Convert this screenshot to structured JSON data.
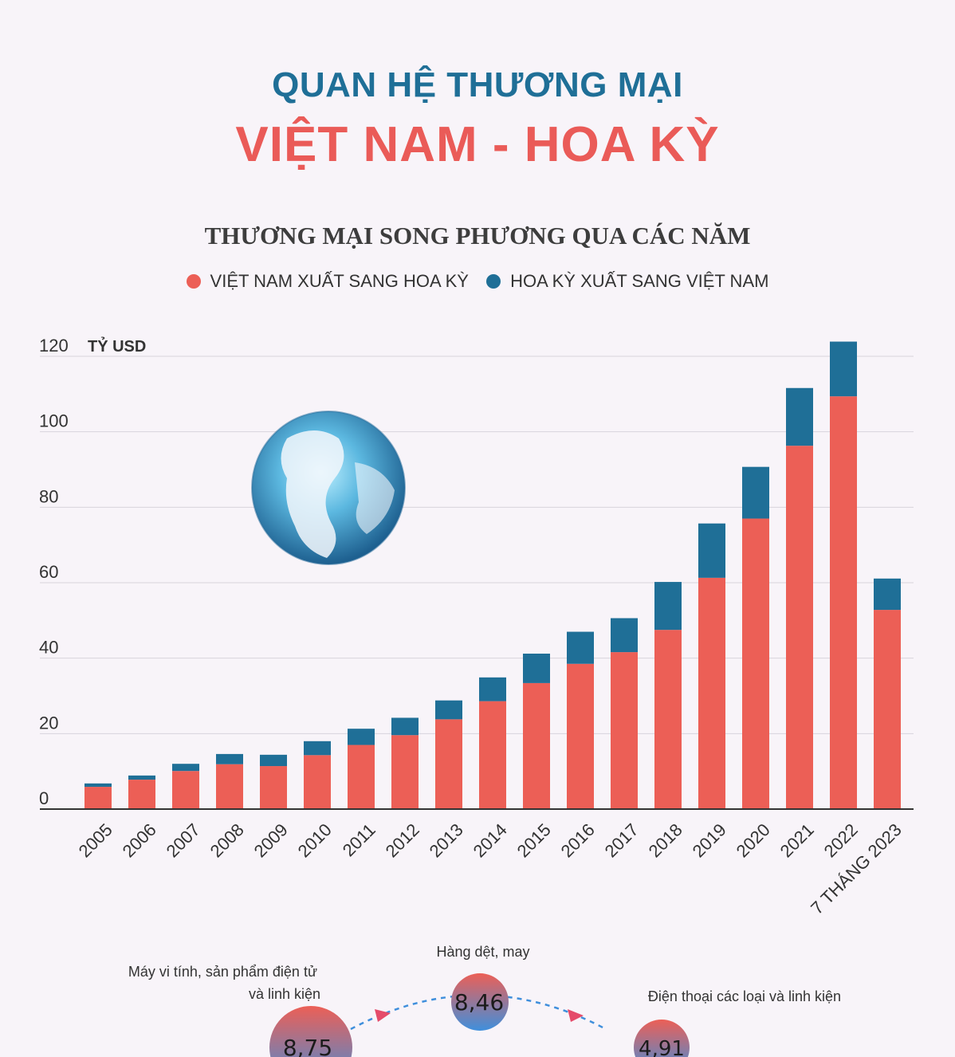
{
  "header": {
    "title_line1": "QUAN HỆ THƯƠNG MẠI",
    "title_line2": "VIỆT NAM - HOA KỲ"
  },
  "colors": {
    "vn_export": "#ec5f56",
    "us_export": "#1f6f97",
    "title_blue": "#1f6f97",
    "title_red": "#ea5b58"
  },
  "chart_data": {
    "type": "bar",
    "stacked": true,
    "title": "THƯƠNG MẠI SONG PHƯƠNG QUA CÁC NĂM",
    "ylabel": "TỶ USD",
    "ylim": [
      0,
      120
    ],
    "yticks": [
      0,
      20,
      40,
      60,
      80,
      100,
      120
    ],
    "grid": true,
    "legend_position": "top-center",
    "categories": [
      "2005",
      "2006",
      "2007",
      "2008",
      "2009",
      "2010",
      "2011",
      "2012",
      "2013",
      "2014",
      "2015",
      "2016",
      "2017",
      "2018",
      "2019",
      "2020",
      "2021",
      "2022",
      "7 THÁNG 2023"
    ],
    "series": [
      {
        "name": "VIỆT NAM XUẤT SANG HOA KỲ",
        "values": [
          5.9,
          7.8,
          10.1,
          11.9,
          11.4,
          14.3,
          17.0,
          19.6,
          23.8,
          28.6,
          33.4,
          38.5,
          41.6,
          47.5,
          61.3,
          77.0,
          96.3,
          109.4,
          52.8
        ]
      },
      {
        "name": "HOA KỲ XUẤT SANG VIỆT NAM",
        "values": [
          0.9,
          1.1,
          1.9,
          2.7,
          3.0,
          3.7,
          4.3,
          4.6,
          5.0,
          6.3,
          7.8,
          8.5,
          9.0,
          12.7,
          14.4,
          13.7,
          15.3,
          14.5,
          8.3
        ]
      }
    ]
  },
  "bubbles": [
    {
      "label_line1": "Máy vi tính, sản phẩm điện tử",
      "label_line2": "và linh kiện",
      "value": "8,75"
    },
    {
      "label_line1": "Hàng dệt, may",
      "label_line2": "",
      "value": "8,46"
    },
    {
      "label_line1": "Điện thoại các loại và linh kiện",
      "label_line2": "",
      "value": "4,91"
    }
  ]
}
